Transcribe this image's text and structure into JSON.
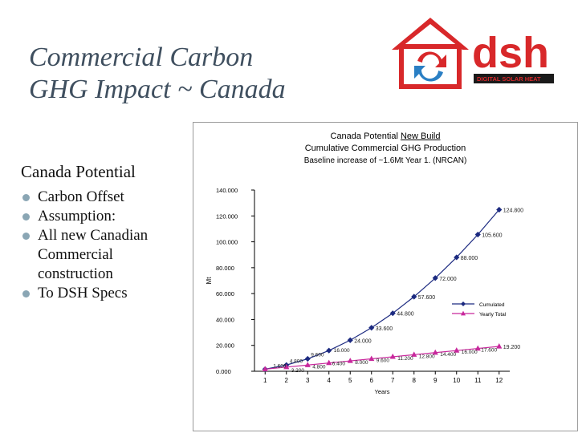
{
  "slide": {
    "title_lines": [
      "Commercial Carbon",
      "GHG Impact ~ Canada"
    ],
    "section_heading": "Canada Potential",
    "bullets": [
      "Carbon Offset",
      "Assumption:",
      "All new Canadian",
      "Commercial",
      "construction",
      "To DSH Specs"
    ]
  },
  "logo": {
    "text": "dsh",
    "tagline": "DIGITAL SOLAR HEAT",
    "colors": {
      "red": "#d8282a",
      "blue": "#2a7fc4",
      "dark": "#1a1a1a"
    }
  },
  "chart_data": {
    "type": "line",
    "title_line1_prefix": "Canada Potential ",
    "title_line1_underlined": "New Build",
    "title_line2": "Cumulative Commercial GHG Production",
    "subtitle": "Baseline increase of ~1.6Mt Year 1. (NRCAN)",
    "xlabel": "Years",
    "ylabel": "Mt",
    "ylim": [
      0,
      140
    ],
    "yticks": [
      "0.000",
      "20.000",
      "40.000",
      "60.000",
      "80.000",
      "100.000",
      "120.000",
      "140.000"
    ],
    "categories": [
      "1",
      "2",
      "3",
      "4",
      "5",
      "6",
      "7",
      "8",
      "9",
      "10",
      "11",
      "12"
    ],
    "legend_position": "right",
    "series": [
      {
        "name": "Cumulated",
        "color": "#1c2a80",
        "marker": "diamond",
        "values": [
          1.6,
          4.8,
          9.6,
          16.0,
          24.0,
          33.6,
          44.8,
          57.6,
          72.0,
          88.0,
          105.6,
          124.8
        ],
        "labels": [
          "",
          "",
          "",
          "",
          "24.000",
          "33.600",
          "44.800",
          "57.600",
          "72.000",
          "88.000",
          "105.600",
          "124.800"
        ]
      },
      {
        "name": "Yearly Total",
        "color": "#c8289c",
        "marker": "triangle",
        "values": [
          1.6,
          3.2,
          4.8,
          6.4,
          8.0,
          9.6,
          11.2,
          12.8,
          14.4,
          16.0,
          17.6,
          19.2
        ],
        "labels": [
          "",
          "",
          "",
          "",
          "",
          "",
          "",
          "",
          "",
          "",
          "",
          "19.200"
        ]
      }
    ],
    "extra_labels": [
      "1.600",
      "4.800",
      "9.600",
      "16.000",
      "3.200",
      "4.800",
      "6.400",
      "8.000",
      "9.600",
      "11.200",
      "12.800",
      "14.400",
      "16.000",
      "17.600"
    ]
  }
}
